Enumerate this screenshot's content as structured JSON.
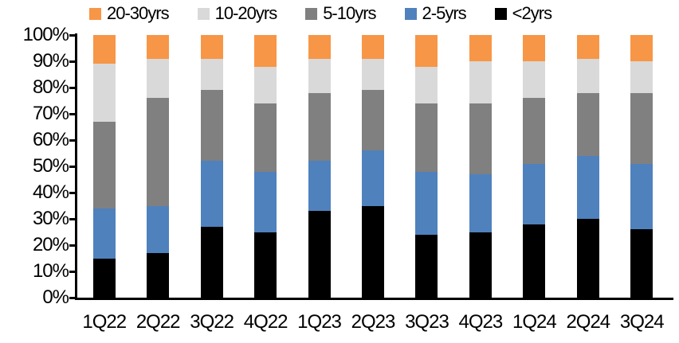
{
  "chart_data": {
    "type": "bar",
    "subtype": "stacked-100-percent",
    "title": "",
    "xlabel": "",
    "ylabel": "",
    "grid": false,
    "legend_position": "top",
    "background_color": "#FFFFFF",
    "axis_color": "#000000",
    "categories": [
      "1Q22",
      "2Q22",
      "3Q22",
      "4Q22",
      "1Q23",
      "2Q23",
      "3Q23",
      "4Q23",
      "1Q24",
      "2Q24",
      "3Q24"
    ],
    "legend": [
      {
        "label": "20-30yrs",
        "color": "#F79646"
      },
      {
        "label": "10-20yrs",
        "color": "#D9D9D9"
      },
      {
        "label": "5-10yrs",
        "color": "#808080"
      },
      {
        "label": "2-5yrs",
        "color": "#4F81BD"
      },
      {
        "label": "<2yrs",
        "color": "#000000"
      }
    ],
    "series": [
      {
        "name": "<2yrs",
        "color": "#000000",
        "values": [
          15,
          17,
          27,
          25,
          33,
          35,
          24,
          25,
          28,
          30,
          26
        ]
      },
      {
        "name": "2-5yrs",
        "color": "#4F81BD",
        "values": [
          19,
          18,
          25,
          23,
          19,
          21,
          24,
          22,
          23,
          24,
          25
        ]
      },
      {
        "name": "5-10yrs",
        "color": "#808080",
        "values": [
          33,
          41,
          27,
          26,
          26,
          23,
          26,
          27,
          25,
          24,
          27
        ]
      },
      {
        "name": "10-20yrs",
        "color": "#D9D9D9",
        "values": [
          22,
          15,
          12,
          14,
          13,
          12,
          14,
          16,
          14,
          13,
          12
        ]
      },
      {
        "name": "20-30yrs",
        "color": "#F79646",
        "values": [
          11,
          9,
          9,
          12,
          9,
          9,
          12,
          10,
          10,
          9,
          10
        ]
      }
    ],
    "y_axis": {
      "min": 0,
      "max": 100,
      "step": 10,
      "unit": "%",
      "tick_labels": [
        "100%",
        "90%",
        "80%",
        "70%",
        "60%",
        "50%",
        "40%",
        "30%",
        "20%",
        "10%",
        "0%"
      ]
    }
  }
}
